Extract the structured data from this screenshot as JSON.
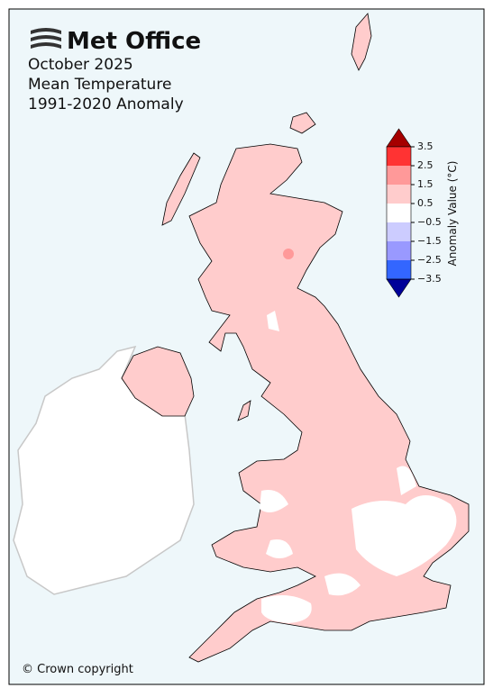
{
  "header": {
    "logo": "Met Office",
    "title_lines": [
      "October 2025",
      "Mean Temperature",
      "1991-2020 Anomaly"
    ]
  },
  "colorbar": {
    "label": "Anomaly Value (°C)",
    "ticks": [
      3.5,
      2.5,
      1.5,
      0.5,
      {
        "value": -0.5,
        "label": "−0.5"
      },
      {
        "value": -1.5,
        "label": "−1.5"
      },
      {
        "value": -2.5,
        "label": "−2.5"
      },
      {
        "value": -3.5,
        "label": "−3.5"
      }
    ],
    "colors": [
      "#a50000",
      "#ff3333",
      "#ff9999",
      "#ffcccc",
      "#ffffff",
      "#ccccff",
      "#9999ff",
      "#3366ff",
      "#000099"
    ]
  },
  "footer": {
    "copyright": "© Crown copyright"
  }
}
